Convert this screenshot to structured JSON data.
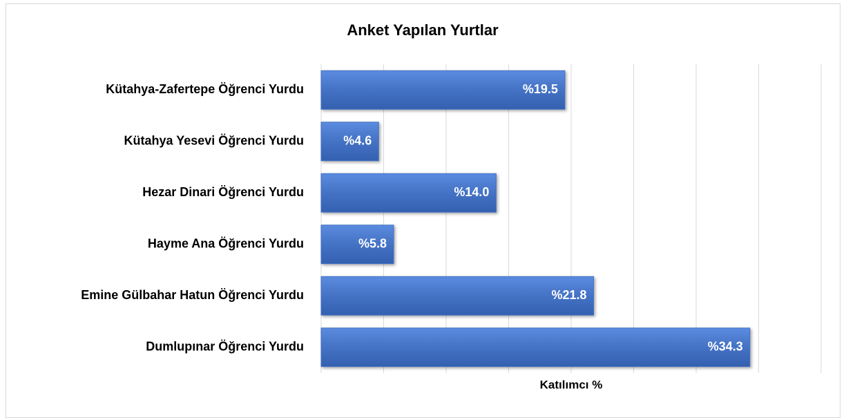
{
  "chart_data": {
    "type": "bar",
    "orientation": "horizontal",
    "title": "Anket Yapılan Yurtlar",
    "categories": [
      "Kütahya-Zafertepe Öğrenci Yurdu",
      "Kütahya Yesevi Öğrenci Yurdu",
      "Hezar Dinari Öğrenci Yurdu",
      "Hayme Ana Öğrenci Yurdu",
      "Emine Gülbahar Hatun Öğrenci Yurdu",
      "Dumlupınar Öğrenci Yurdu"
    ],
    "values": [
      19.5,
      4.6,
      14.0,
      5.8,
      21.8,
      34.3
    ],
    "value_labels": [
      "%19.5",
      "%4.6",
      "%14.0",
      "%5.8",
      "%21.8",
      "%34.3"
    ],
    "color": "#4472c4",
    "xlabel": "Katılımcı %",
    "xlim": [
      0,
      40
    ],
    "xticks": [
      0,
      5,
      10,
      15,
      20,
      25,
      30,
      35,
      40
    ],
    "grid": true
  }
}
